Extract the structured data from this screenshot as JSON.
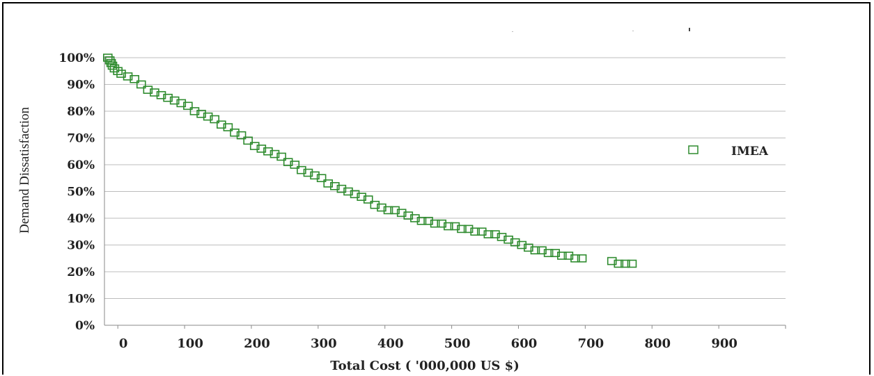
{
  "chart_data": {
    "type": "scatter",
    "title": "",
    "xlabel": "Total Cost ( '000,000 US $)",
    "ylabel": "Demand Dissatisfaction",
    "xlim": [
      -20,
      1000
    ],
    "ylim": [
      0,
      100
    ],
    "x_ticks": [
      "0",
      "100",
      "200",
      "300",
      "400",
      "500",
      "600",
      "700",
      "800",
      "900"
    ],
    "y_ticks": [
      "0%",
      "10%",
      "20%",
      "30%",
      "40%",
      "50%",
      "60%",
      "70%",
      "80%",
      "90%",
      "100%"
    ],
    "grid": "horizontal",
    "legend_position": "right",
    "series": [
      {
        "name": "IMEA",
        "color": "#2e8b2e",
        "marker": "hollow-square",
        "points": [
          [
            -15,
            100
          ],
          [
            -12,
            99
          ],
          [
            -10,
            98
          ],
          [
            -8,
            97
          ],
          [
            -5,
            96
          ],
          [
            0,
            95
          ],
          [
            5,
            94
          ],
          [
            15,
            93
          ],
          [
            25,
            92
          ],
          [
            35,
            90
          ],
          [
            45,
            88
          ],
          [
            55,
            87
          ],
          [
            65,
            86
          ],
          [
            75,
            85
          ],
          [
            85,
            84
          ],
          [
            95,
            83
          ],
          [
            105,
            82
          ],
          [
            115,
            80
          ],
          [
            125,
            79
          ],
          [
            135,
            78
          ],
          [
            145,
            77
          ],
          [
            155,
            75
          ],
          [
            165,
            74
          ],
          [
            175,
            72
          ],
          [
            185,
            71
          ],
          [
            195,
            69
          ],
          [
            205,
            67
          ],
          [
            215,
            66
          ],
          [
            225,
            65
          ],
          [
            235,
            64
          ],
          [
            245,
            63
          ],
          [
            255,
            61
          ],
          [
            265,
            60
          ],
          [
            275,
            58
          ],
          [
            285,
            57
          ],
          [
            295,
            56
          ],
          [
            305,
            55
          ],
          [
            315,
            53
          ],
          [
            325,
            52
          ],
          [
            335,
            51
          ],
          [
            345,
            50
          ],
          [
            355,
            49
          ],
          [
            365,
            48
          ],
          [
            375,
            47
          ],
          [
            385,
            45
          ],
          [
            395,
            44
          ],
          [
            405,
            43
          ],
          [
            415,
            43
          ],
          [
            425,
            42
          ],
          [
            435,
            41
          ],
          [
            445,
            40
          ],
          [
            455,
            39
          ],
          [
            465,
            39
          ],
          [
            475,
            38
          ],
          [
            485,
            38
          ],
          [
            495,
            37
          ],
          [
            505,
            37
          ],
          [
            515,
            36
          ],
          [
            525,
            36
          ],
          [
            535,
            35
          ],
          [
            545,
            35
          ],
          [
            555,
            34
          ],
          [
            565,
            34
          ],
          [
            575,
            33
          ],
          [
            585,
            32
          ],
          [
            595,
            31
          ],
          [
            605,
            30
          ],
          [
            615,
            29
          ],
          [
            625,
            28
          ],
          [
            635,
            28
          ],
          [
            645,
            27
          ],
          [
            655,
            27
          ],
          [
            665,
            26
          ],
          [
            675,
            26
          ],
          [
            685,
            25
          ],
          [
            695,
            25
          ],
          [
            740,
            24
          ],
          [
            750,
            23
          ],
          [
            760,
            23
          ],
          [
            770,
            23
          ]
        ]
      }
    ]
  }
}
